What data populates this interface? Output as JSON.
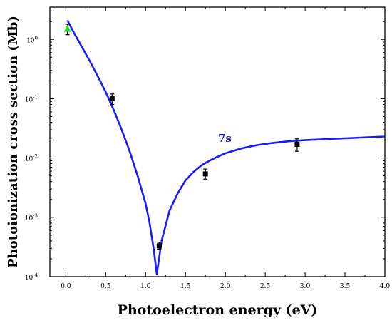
{
  "chart_data": {
    "type": "scatter",
    "title": "",
    "xlabel": "Photoelectron energy (eV)",
    "ylabel": "Photoionization cross section (Mb)",
    "xlim": [
      -0.2,
      4.0
    ],
    "ylim": [
      0.0001,
      3.5
    ],
    "yscale": "log",
    "grid": false,
    "xticks": [
      "0.0",
      "0.5",
      "1.0",
      "1.5",
      "2.0",
      "2.5",
      "3.0",
      "3.5",
      "4.0"
    ],
    "yticks": [
      {
        "value": 0.0001,
        "base": "10",
        "exp": "-4"
      },
      {
        "value": 0.001,
        "base": "10",
        "exp": "-3"
      },
      {
        "value": 0.01,
        "base": "10",
        "exp": "-2"
      },
      {
        "value": 0.1,
        "base": "10",
        "exp": "-1"
      },
      {
        "value": 1,
        "base": "10",
        "exp": "0"
      }
    ],
    "colors": {
      "curve": "#1a1aff",
      "measured": "#000000",
      "highlight": "#22dd22",
      "label": "#1a1acc"
    },
    "curve": {
      "name": "7s",
      "x": [
        0.02,
        0.1,
        0.2,
        0.3,
        0.4,
        0.5,
        0.6,
        0.7,
        0.8,
        0.9,
        1.0,
        1.05,
        1.1,
        1.14,
        1.2,
        1.3,
        1.4,
        1.5,
        1.6,
        1.7,
        1.8,
        1.9,
        2.0,
        2.2,
        2.4,
        2.6,
        2.8,
        3.0,
        3.5,
        4.0
      ],
      "y": [
        2.1,
        1.3,
        0.75,
        0.43,
        0.24,
        0.13,
        0.065,
        0.03,
        0.013,
        0.005,
        0.0017,
        0.0008,
        0.0003,
        0.00011,
        0.0004,
        0.0013,
        0.0025,
        0.0042,
        0.0058,
        0.0075,
        0.009,
        0.0105,
        0.012,
        0.0145,
        0.0165,
        0.018,
        0.0192,
        0.02,
        0.0215,
        0.023
      ]
    },
    "measured": {
      "x": [
        0.58,
        1.17,
        1.75,
        2.9
      ],
      "y": [
        0.1,
        0.00033,
        0.0054,
        0.017
      ],
      "err_low": [
        0.08,
        0.00029,
        0.0044,
        0.013
      ],
      "err_high": [
        0.12,
        0.00038,
        0.0065,
        0.021
      ]
    },
    "highlight_point": {
      "x": 0.02,
      "y": 1.5,
      "err_low": 1.2,
      "err_high": 1.8
    }
  }
}
